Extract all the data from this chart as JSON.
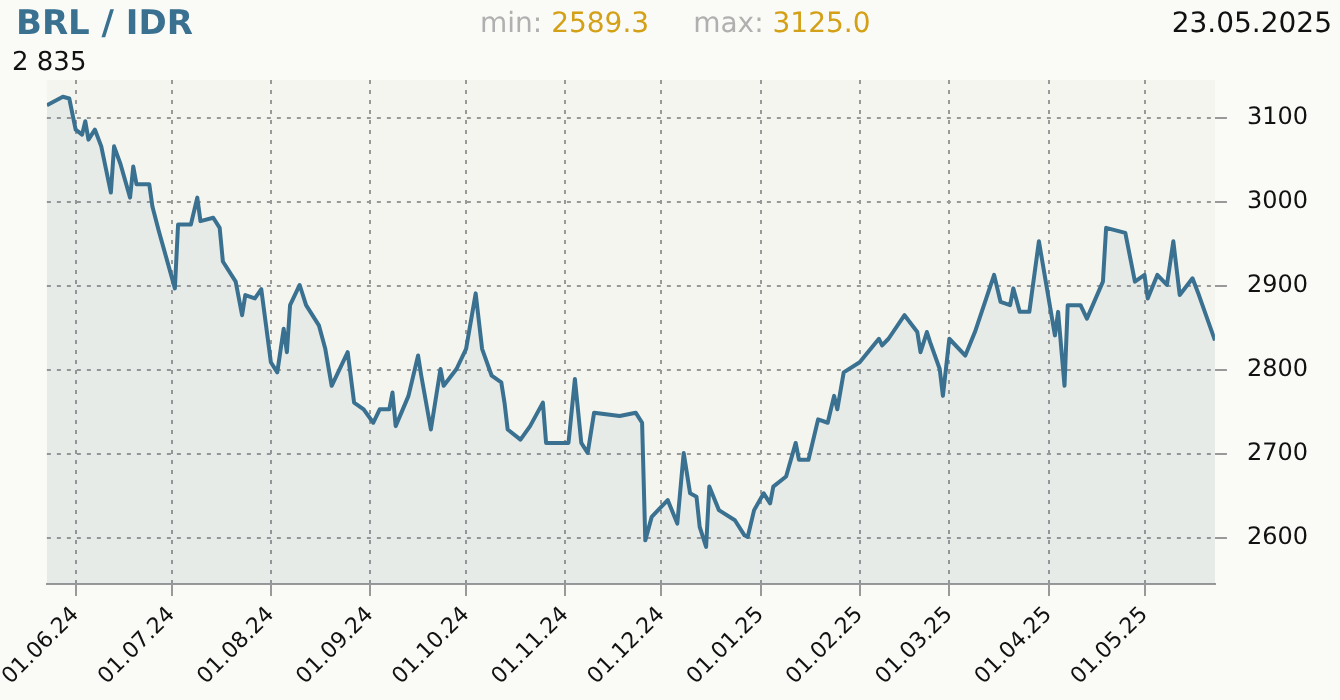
{
  "chart_data": {
    "type": "area",
    "title": "BRL / IDR",
    "annotations": [
      "2 835",
      "min: 2589.3",
      "max: 3125.0",
      "23.05.2025"
    ],
    "x": [
      "2024-05-23",
      "2024-05-28",
      "2024-05-30",
      "2024-06-01",
      "2024-06-03",
      "2024-06-04",
      "2024-06-05",
      "2024-06-07",
      "2024-06-09",
      "2024-06-12",
      "2024-06-13",
      "2024-06-15",
      "2024-06-18",
      "2024-06-19",
      "2024-06-20",
      "2024-06-24",
      "2024-06-25",
      "2024-06-27",
      "2024-07-02",
      "2024-07-03",
      "2024-07-07",
      "2024-07-09",
      "2024-07-10",
      "2024-07-14",
      "2024-07-16",
      "2024-07-17",
      "2024-07-21",
      "2024-07-23",
      "2024-07-24",
      "2024-07-27",
      "2024-07-29",
      "2024-08-01",
      "2024-08-03",
      "2024-08-05",
      "2024-08-06",
      "2024-08-07",
      "2024-08-10",
      "2024-08-12",
      "2024-08-16",
      "2024-08-18",
      "2024-08-20",
      "2024-08-23",
      "2024-08-25",
      "2024-08-27",
      "2024-08-30",
      "2024-09-02",
      "2024-09-04",
      "2024-09-07",
      "2024-09-08",
      "2024-09-09",
      "2024-09-13",
      "2024-09-16",
      "2024-09-17",
      "2024-09-20",
      "2024-09-23",
      "2024-09-24",
      "2024-09-28",
      "2024-10-01",
      "2024-10-04",
      "2024-10-06",
      "2024-10-09",
      "2024-10-12",
      "2024-10-13",
      "2024-10-14",
      "2024-10-18",
      "2024-10-21",
      "2024-10-25",
      "2024-10-26",
      "2024-11-02",
      "2024-11-04",
      "2024-11-06",
      "2024-11-08",
      "2024-11-10",
      "2024-11-18",
      "2024-11-23",
      "2024-11-25",
      "2024-11-26",
      "2024-11-28",
      "2024-12-03",
      "2024-12-06",
      "2024-12-08",
      "2024-12-10",
      "2024-12-12",
      "2024-12-13",
      "2024-12-15",
      "2024-12-16",
      "2024-12-19",
      "2024-12-24",
      "2024-12-27",
      "2024-12-28",
      "2024-12-30",
      "2025-01-02",
      "2025-01-04",
      "2025-01-05",
      "2025-01-09",
      "2025-01-12",
      "2025-01-13",
      "2025-01-16",
      "2025-01-19",
      "2025-01-22",
      "2025-01-24",
      "2025-01-25",
      "2025-01-27",
      "2025-02-01",
      "2025-02-07",
      "2025-02-08",
      "2025-02-10",
      "2025-02-15",
      "2025-02-19",
      "2025-02-20",
      "2025-02-22",
      "2025-02-23",
      "2025-02-26",
      "2025-02-27",
      "2025-03-01",
      "2025-03-06",
      "2025-03-09",
      "2025-03-15",
      "2025-03-17",
      "2025-03-20",
      "2025-03-21",
      "2025-03-23",
      "2025-03-26",
      "2025-03-29",
      "2025-04-03",
      "2025-04-04",
      "2025-04-06",
      "2025-04-07",
      "2025-04-11",
      "2025-04-13",
      "2025-04-18",
      "2025-04-19",
      "2025-04-25",
      "2025-04-28",
      "2025-05-01",
      "2025-05-02",
      "2025-05-05",
      "2025-05-08",
      "2025-05-10",
      "2025-05-12",
      "2025-05-16",
      "2025-05-18",
      "2025-05-23"
    ],
    "series": [
      {
        "color": "#3a7191",
        "values": [
          3115,
          3125,
          3123,
          3086,
          3080,
          3096,
          3074,
          3086,
          3066,
          3011,
          3066,
          3045,
          3005,
          3042,
          3021,
          3021,
          2994,
          2965,
          2897,
          2973,
          2973,
          3005,
          2977,
          2981,
          2969,
          2929,
          2905,
          2865,
          2889,
          2885,
          2896,
          2809,
          2797,
          2849,
          2821,
          2877,
          2901,
          2877,
          2853,
          2825,
          2781,
          2805,
          2821,
          2761,
          2753,
          2737,
          2753,
          2753,
          2773,
          2733,
          2769,
          2817,
          2793,
          2729,
          2801,
          2781,
          2801,
          2825,
          2891,
          2825,
          2793,
          2785,
          2761,
          2729,
          2717,
          2733,
          2761,
          2713,
          2713,
          2789,
          2713,
          2701,
          2749,
          2745,
          2749,
          2737,
          2597,
          2625,
          2645,
          2617,
          2701,
          2653,
          2649,
          2613,
          2589.3,
          2661,
          2633,
          2621,
          2603,
          2601,
          2633,
          2653,
          2641,
          2661,
          2673,
          2713,
          2693,
          2693,
          2741,
          2737,
          2769,
          2753,
          2797,
          2809,
          2837,
          2829,
          2837,
          2865,
          2845,
          2821,
          2845,
          2833,
          2801,
          2769,
          2837,
          2817,
          2845,
          2913,
          2881,
          2877,
          2897,
          2869,
          2869,
          2953,
          2841,
          2869,
          2781,
          2877,
          2877,
          2861,
          2905,
          2969,
          2963,
          2905,
          2913,
          2885,
          2913,
          2901,
          2953,
          2889,
          2909,
          2889,
          2835
        ]
      }
    ],
    "xlim": [
      "2024-05-23",
      "2025-05-23"
    ],
    "xticks": [
      {
        "value": "2024-06-01",
        "label": "01.06.24"
      },
      {
        "value": "2024-07-01",
        "label": "01.07.24"
      },
      {
        "value": "2024-08-01",
        "label": "01.08.24"
      },
      {
        "value": "2024-09-01",
        "label": "01.09.24"
      },
      {
        "value": "2024-10-01",
        "label": "01.10.24"
      },
      {
        "value": "2024-11-01",
        "label": "01.11.24"
      },
      {
        "value": "2024-12-01",
        "label": "01.12.24"
      },
      {
        "value": "2025-01-01",
        "label": "01.01.25"
      },
      {
        "value": "2025-02-01",
        "label": "01.02.25"
      },
      {
        "value": "2025-03-01",
        "label": "01.03.25"
      },
      {
        "value": "2025-04-01",
        "label": "01.04.25"
      },
      {
        "value": "2025-05-01",
        "label": "01.05.25"
      }
    ],
    "ylim": [
      2545,
      3145
    ],
    "yticks": [
      2600,
      2700,
      2800,
      2900,
      3000,
      3100
    ],
    "grid": true,
    "legend": false
  }
}
